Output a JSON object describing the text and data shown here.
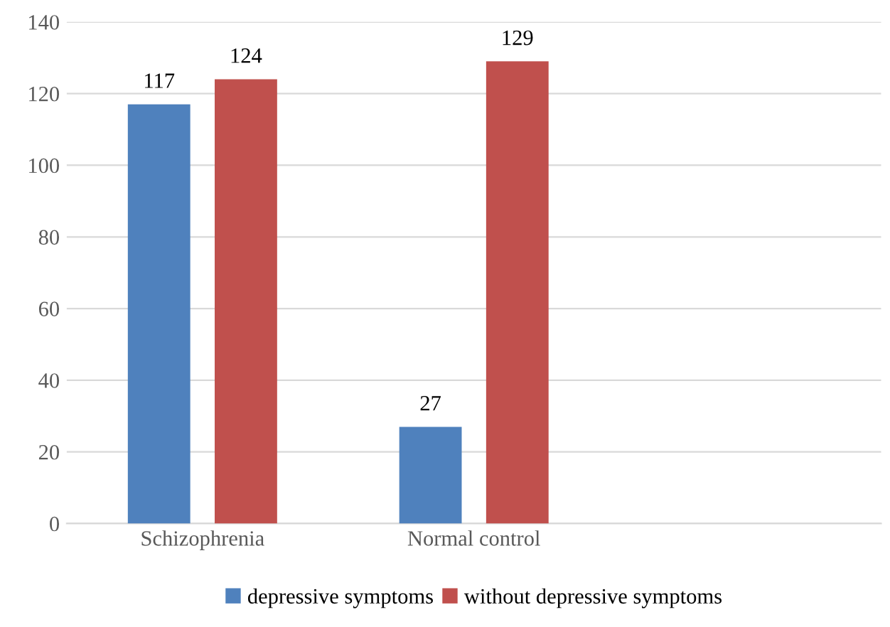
{
  "chart_data": {
    "type": "bar",
    "categories": [
      "Schizophrenia",
      "Normal control",
      null
    ],
    "series": [
      {
        "name": "depressive symptoms",
        "color": "#4f81bd",
        "values": [
          117,
          27,
          null
        ]
      },
      {
        "name": "without depressive symptoms",
        "color": "#c0504d",
        "values": [
          124,
          129,
          null
        ]
      }
    ],
    "ylim": [
      0,
      140
    ],
    "yticks": [
      0,
      20,
      40,
      60,
      80,
      100,
      120,
      140
    ],
    "grid": "y",
    "legend": "bottom",
    "data_labels": true
  }
}
